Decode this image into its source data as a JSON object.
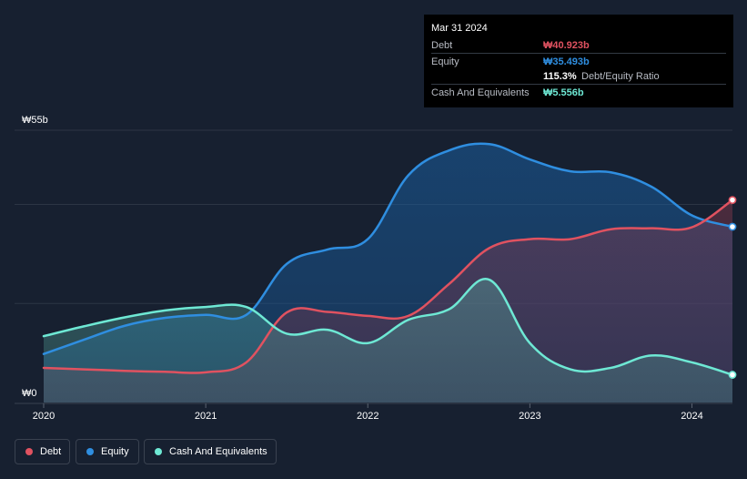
{
  "tooltip": {
    "date": "Mar 31 2024",
    "debt_label": "Debt",
    "debt_value": "₩40.923b",
    "equity_label": "Equity",
    "equity_value": "₩35.493b",
    "ratio_value": "115.3%",
    "ratio_label": "Debt/Equity Ratio",
    "cash_label": "Cash And Equivalents",
    "cash_value": "₩5.556b"
  },
  "legend": [
    {
      "label": "Debt",
      "color": "#e05260"
    },
    {
      "label": "Equity",
      "color": "#2f8ee0"
    },
    {
      "label": "Cash And Equivalents",
      "color": "#6ee8d4"
    }
  ],
  "chart_data": {
    "type": "area",
    "y_top_label": "₩55b",
    "y_bottom_label": "₩0",
    "ylim": [
      0,
      55
    ],
    "xlim": [
      2020.0,
      2024.25
    ],
    "x_ticks": [
      {
        "value": 2020,
        "label": "2020"
      },
      {
        "value": 2021,
        "label": "2021"
      },
      {
        "value": 2022,
        "label": "2022"
      },
      {
        "value": 2023,
        "label": "2023"
      },
      {
        "value": 2024,
        "label": "2024"
      }
    ],
    "series": [
      {
        "name": "Equity",
        "color": "#2f8ee0",
        "points": [
          [
            2020.0,
            9.8
          ],
          [
            2020.25,
            12.7
          ],
          [
            2020.5,
            15.5
          ],
          [
            2020.75,
            17.1
          ],
          [
            2021.0,
            17.7
          ],
          [
            2021.25,
            17.7
          ],
          [
            2021.5,
            28.0
          ],
          [
            2021.75,
            30.9
          ],
          [
            2022.0,
            33.0
          ],
          [
            2022.25,
            45.9
          ],
          [
            2022.5,
            50.9
          ],
          [
            2022.75,
            52.2
          ],
          [
            2023.0,
            49.1
          ],
          [
            2023.25,
            46.7
          ],
          [
            2023.5,
            46.5
          ],
          [
            2023.75,
            43.6
          ],
          [
            2024.0,
            37.8
          ],
          [
            2024.25,
            35.5
          ]
        ]
      },
      {
        "name": "Debt",
        "color": "#e05260",
        "points": [
          [
            2020.0,
            7.0
          ],
          [
            2020.25,
            6.7
          ],
          [
            2020.5,
            6.4
          ],
          [
            2020.75,
            6.2
          ],
          [
            2021.0,
            6.1
          ],
          [
            2021.25,
            8.1
          ],
          [
            2021.5,
            18.2
          ],
          [
            2021.75,
            18.3
          ],
          [
            2022.0,
            17.5
          ],
          [
            2022.25,
            17.5
          ],
          [
            2022.5,
            23.9
          ],
          [
            2022.75,
            31.2
          ],
          [
            2023.0,
            33.0
          ],
          [
            2023.25,
            33.0
          ],
          [
            2023.5,
            35.0
          ],
          [
            2023.75,
            35.2
          ],
          [
            2024.0,
            35.4
          ],
          [
            2024.25,
            40.9
          ]
        ]
      },
      {
        "name": "Cash And Equivalents",
        "color": "#6ee8d4",
        "points": [
          [
            2020.0,
            13.4
          ],
          [
            2020.25,
            15.4
          ],
          [
            2020.5,
            17.2
          ],
          [
            2020.75,
            18.6
          ],
          [
            2021.0,
            19.3
          ],
          [
            2021.25,
            19.3
          ],
          [
            2021.5,
            13.9
          ],
          [
            2021.75,
            14.7
          ],
          [
            2022.0,
            12.0
          ],
          [
            2022.25,
            16.7
          ],
          [
            2022.5,
            18.8
          ],
          [
            2022.75,
            24.8
          ],
          [
            2023.0,
            12.0
          ],
          [
            2023.25,
            6.7
          ],
          [
            2023.5,
            7.0
          ],
          [
            2023.75,
            9.5
          ],
          [
            2024.0,
            8.1
          ],
          [
            2024.25,
            5.6
          ]
        ]
      }
    ]
  }
}
